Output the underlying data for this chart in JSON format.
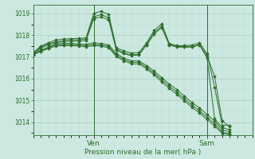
{
  "xlabel": "Pression niveau de la mer( hPa )",
  "bg_color": "#cce8e0",
  "line_color": "#2d6e2d",
  "grid_color_major": "#aaccc4",
  "grid_color_minor": "#bbddd6",
  "ylim": [
    1013.4,
    1019.4
  ],
  "yticks": [
    1014,
    1015,
    1016,
    1017,
    1018,
    1019
  ],
  "xlim": [
    0,
    29
  ],
  "ven_x": 8,
  "sam_x": 23,
  "series": [
    [
      1017.1,
      1017.4,
      1017.55,
      1017.65,
      1017.7,
      1017.72,
      1017.73,
      1017.75,
      1018.75,
      1018.85,
      1018.7,
      1017.3,
      1017.15,
      1017.05,
      1017.1,
      1017.55,
      1018.05,
      1018.35,
      1017.55,
      1017.45,
      1017.45,
      1017.45,
      1017.55,
      1016.95,
      1014.15,
      1013.75,
      1013.65
    ],
    [
      1017.15,
      1017.45,
      1017.6,
      1017.7,
      1017.75,
      1017.78,
      1017.79,
      1017.82,
      1018.85,
      1018.95,
      1018.8,
      1017.35,
      1017.2,
      1017.1,
      1017.12,
      1017.58,
      1018.12,
      1018.42,
      1017.58,
      1017.48,
      1017.48,
      1017.48,
      1017.58,
      1017.05,
      1016.1,
      1014.05,
      1013.8
    ],
    [
      1017.2,
      1017.5,
      1017.65,
      1017.78,
      1017.82,
      1017.84,
      1017.85,
      1017.88,
      1019.0,
      1019.1,
      1018.95,
      1017.42,
      1017.28,
      1017.18,
      1017.2,
      1017.65,
      1018.22,
      1018.52,
      1017.62,
      1017.52,
      1017.52,
      1017.55,
      1017.65,
      1017.15,
      1015.6,
      1013.85,
      1013.85
    ],
    [
      1017.1,
      1017.3,
      1017.45,
      1017.6,
      1017.62,
      1017.62,
      1017.6,
      1017.58,
      1017.65,
      1017.62,
      1017.55,
      1017.15,
      1016.95,
      1016.82,
      1016.82,
      1016.6,
      1016.35,
      1016.05,
      1015.75,
      1015.5,
      1015.2,
      1014.9,
      1014.65,
      1014.35,
      1014.05,
      1013.65,
      1013.55
    ],
    [
      1017.1,
      1017.28,
      1017.42,
      1017.55,
      1017.57,
      1017.57,
      1017.55,
      1017.52,
      1017.58,
      1017.55,
      1017.48,
      1017.08,
      1016.88,
      1016.75,
      1016.75,
      1016.52,
      1016.25,
      1015.95,
      1015.65,
      1015.38,
      1015.08,
      1014.78,
      1014.52,
      1014.22,
      1013.92,
      1013.55,
      1013.45
    ],
    [
      1017.1,
      1017.25,
      1017.38,
      1017.5,
      1017.52,
      1017.52,
      1017.5,
      1017.47,
      1017.52,
      1017.5,
      1017.42,
      1017.02,
      1016.82,
      1016.68,
      1016.68,
      1016.45,
      1016.18,
      1015.85,
      1015.55,
      1015.28,
      1014.98,
      1014.68,
      1014.42,
      1014.12,
      1013.82,
      1013.48,
      1013.42
    ]
  ]
}
